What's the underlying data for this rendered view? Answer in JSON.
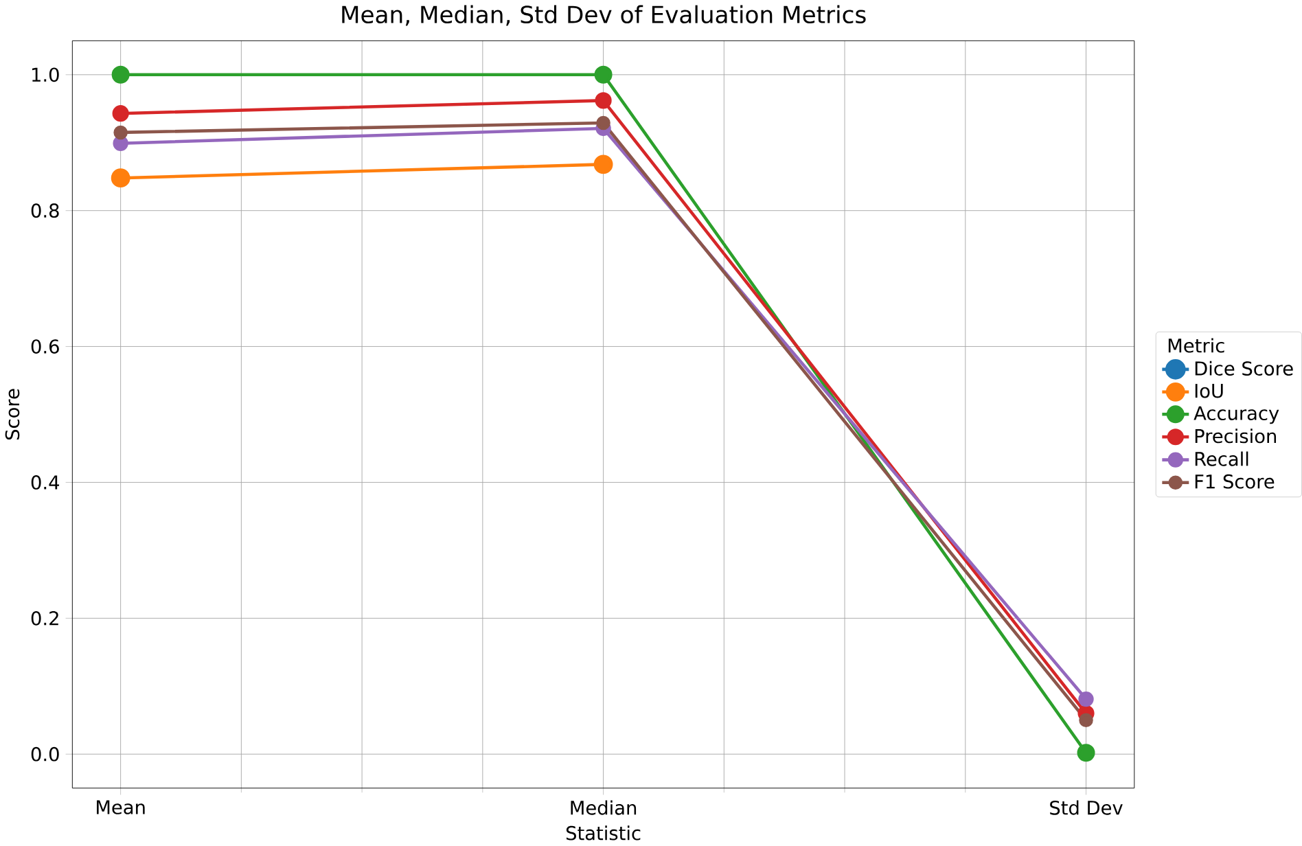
{
  "chart_data": {
    "type": "line",
    "title": "Mean, Median, Std Dev of Evaluation Metrics",
    "xlabel": "Statistic",
    "ylabel": "Score",
    "legend_title": "Metric",
    "categories": [
      "Mean",
      "Median",
      "Std Dev"
    ],
    "ylim": [
      -0.05,
      1.05
    ],
    "yticks": [
      {
        "value": 0,
        "label": "0.0"
      },
      0.2,
      0.4,
      0.6,
      0.8,
      {
        "value": 1,
        "label": "1.0"
      }
    ],
    "grid": true,
    "legend": "right",
    "marker": "circle",
    "series": [
      {
        "name": "Dice Score",
        "color": "#1f77b4",
        "values": [
          null,
          null,
          null
        ]
      },
      {
        "name": "IoU",
        "color": "#ff7f0e",
        "values": [
          0.848,
          0.868,
          null
        ]
      },
      {
        "name": "Accuracy",
        "color": "#2ca02c",
        "values": [
          1.0,
          1.0,
          0.002
        ]
      },
      {
        "name": "Precision",
        "color": "#d62728",
        "values": [
          0.943,
          0.962,
          0.06
        ]
      },
      {
        "name": "Recall",
        "color": "#9467bd",
        "values": [
          0.899,
          0.921,
          0.081
        ]
      },
      {
        "name": "F1 Score",
        "color": "#8c564b",
        "values": [
          0.915,
          0.929,
          0.05
        ]
      }
    ]
  }
}
